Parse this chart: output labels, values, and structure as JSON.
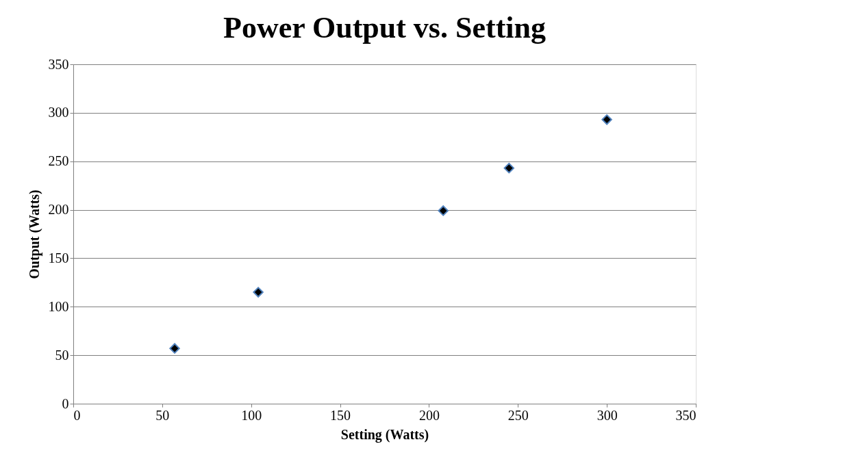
{
  "chart_data": {
    "type": "scatter",
    "title": "Power Output vs. Setting",
    "xlabel": "Setting (Watts)",
    "ylabel": "Output  (Watts)",
    "x": [
      57,
      104,
      208,
      245,
      300
    ],
    "series": [
      {
        "color": "#000000",
        "values": [
          57,
          115,
          199,
          243,
          293
        ]
      }
    ],
    "xlim": [
      0,
      350
    ],
    "xticks": [
      0,
      50,
      100,
      150,
      200,
      250,
      300,
      350
    ],
    "ylim": [
      0,
      350
    ],
    "yticks": [
      0,
      50,
      100,
      150,
      200,
      250,
      300,
      350
    ],
    "grid": "y",
    "marker": "diamond",
    "legend": false
  }
}
